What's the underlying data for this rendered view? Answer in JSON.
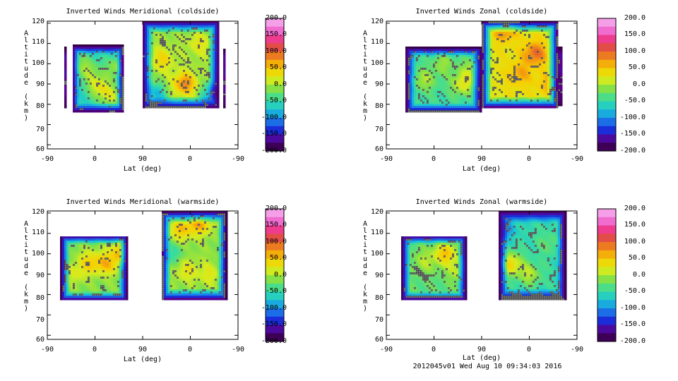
{
  "footer": {
    "stamp": "2012045v01 Wed Aug 10 09:34:03 2016"
  },
  "palette": {
    "stops": [
      "#2a0033",
      "#5a008c",
      "#1a2ad8",
      "#1c7ae8",
      "#17c3d8",
      "#38dca0",
      "#7ee04a",
      "#d6ec1e",
      "#f6d000",
      "#f39012",
      "#e0503a",
      "#ee3c92",
      "#f07ae0",
      "#f6b8ee"
    ],
    "line": "#000000"
  },
  "chart_data": [
    {
      "type": "heatmap",
      "id": "mer-cold",
      "title": "Inverted Winds Meridional (coldside)",
      "xlabel": "Lat (deg)",
      "ylabel": "Altitude (km)",
      "xticks": [
        "-90",
        "0",
        "90",
        "0",
        "-90"
      ],
      "yticks": [
        "60",
        "70",
        "80",
        "90",
        "100",
        "110",
        "120"
      ],
      "ylim": [
        58,
        121
      ],
      "colorbar": {
        "min": -200,
        "max": 200,
        "labels": [
          "200.0",
          "150.0",
          "100.0",
          "50.0",
          "0.0",
          "-50.0",
          "-100.0",
          "-150.0",
          "-200.0"
        ]
      },
      "regions": [
        {
          "x0": 0.13,
          "x1": 0.4,
          "y0": 76,
          "y1": 109,
          "base": -60,
          "blobs": [
            [
              0.27,
              89,
              1.0
            ],
            [
              0.33,
              84,
              0.9
            ],
            [
              0.22,
              96,
              0.6
            ],
            [
              0.36,
              98,
              0.7
            ],
            [
              0.18,
              101,
              0.4
            ]
          ]
        },
        {
          "x0": 0.5,
          "x1": 0.9,
          "y0": 78,
          "y1": 121,
          "base": -5,
          "blobs": [
            [
              0.72,
              90,
              1.2
            ],
            [
              0.6,
              102,
              0.6
            ],
            [
              0.8,
              110,
              0.4
            ],
            [
              0.57,
              85,
              -1.0
            ],
            [
              0.87,
              85,
              -1.3
            ]
          ]
        },
        {
          "x0": 0.085,
          "x1": 0.1,
          "y0": 78,
          "y1": 108,
          "base": -170,
          "blobs": []
        },
        {
          "x0": 0.92,
          "x1": 0.935,
          "y0": 78,
          "y1": 107,
          "base": -170,
          "blobs": []
        }
      ]
    },
    {
      "type": "heatmap",
      "id": "zon-cold",
      "title": "Inverted Winds Zonal (coldside)",
      "xlabel": "Lat (deg)",
      "ylabel": "Altitude (km)",
      "xticks": [
        "-90",
        "0",
        "90",
        "0",
        "-90"
      ],
      "yticks": [
        "60",
        "70",
        "80",
        "90",
        "100",
        "110",
        "120"
      ],
      "ylim": [
        58,
        121
      ],
      "colorbar": {
        "min": -200,
        "max": 200,
        "labels": [
          "200.0",
          "150.0",
          "100.0",
          "50.0",
          "0.0",
          "-50.0",
          "-100.0",
          "-150.0",
          "-200.0"
        ]
      },
      "regions": [
        {
          "x0": 0.1,
          "x1": 0.5,
          "y0": 76,
          "y1": 108,
          "base": -45,
          "blobs": [
            [
              0.2,
              92,
              0.6
            ],
            [
              0.4,
              90,
              0.9
            ],
            [
              0.3,
              100,
              0.5
            ],
            [
              0.45,
              97,
              0.6
            ]
          ]
        },
        {
          "x0": 0.5,
          "x1": 0.9,
          "y0": 78,
          "y1": 121,
          "base": 30,
          "blobs": [
            [
              0.62,
              117,
              0.8
            ],
            [
              0.78,
              105,
              0.9
            ],
            [
              0.7,
              95,
              0.5
            ],
            [
              0.85,
              90,
              0.4
            ]
          ]
        },
        {
          "x0": 0.9,
          "x1": 0.92,
          "y0": 79,
          "y1": 108,
          "base": -170,
          "blobs": []
        }
      ]
    },
    {
      "type": "heatmap",
      "id": "mer-warm",
      "title": "Inverted Winds Meridional (warmside)",
      "xlabel": "Lat (deg)",
      "ylabel": "Altitude (km)",
      "xticks": [
        "-90",
        "0",
        "90",
        "0",
        "-90"
      ],
      "yticks": [
        "60",
        "70",
        "80",
        "90",
        "100",
        "110",
        "120"
      ],
      "ylim": [
        58,
        121
      ],
      "colorbar": {
        "min": -200,
        "max": 200,
        "labels": [
          "200.0",
          "150.0",
          "100.0",
          "50.0",
          "0.0",
          "-50.0",
          "-100.0",
          "-150.0",
          "-200.0"
        ]
      },
      "regions": [
        {
          "x0": 0.07,
          "x1": 0.42,
          "y0": 77,
          "y1": 109,
          "base": -15,
          "blobs": [
            [
              0.22,
              96,
              0.7
            ],
            [
              0.31,
              95,
              0.9
            ],
            [
              0.4,
              101,
              1.2
            ],
            [
              0.15,
              90,
              0.4
            ]
          ]
        },
        {
          "x0": 0.6,
          "x1": 0.94,
          "y0": 77,
          "y1": 121,
          "base": -10,
          "blobs": [
            [
              0.7,
              112,
              0.8
            ],
            [
              0.8,
              115,
              1.0
            ],
            [
              0.73,
              92,
              0.5
            ],
            [
              0.85,
              90,
              0.4
            ],
            [
              0.66,
              100,
              -0.5
            ]
          ]
        }
      ]
    },
    {
      "type": "heatmap",
      "id": "zon-warm",
      "title": "Inverted Winds Zonal (warmside)",
      "xlabel": "Lat (deg)",
      "ylabel": "Altitude (km)",
      "xticks": [
        "-90",
        "0",
        "90",
        "0",
        "-90"
      ],
      "yticks": [
        "60",
        "70",
        "80",
        "90",
        "100",
        "110",
        "120"
      ],
      "ylim": [
        58,
        121
      ],
      "colorbar": {
        "min": -200,
        "max": 200,
        "labels": [
          "200.0",
          "150.0",
          "100.0",
          "50.0",
          "0.0",
          "-50.0",
          "-100.0",
          "-150.0",
          "-200.0"
        ]
      },
      "regions": [
        {
          "x0": 0.08,
          "x1": 0.42,
          "y0": 77,
          "y1": 109,
          "base": -30,
          "blobs": [
            [
              0.31,
              100,
              1.1
            ],
            [
              0.2,
              96,
              0.4
            ],
            [
              0.38,
              92,
              0.5
            ]
          ]
        },
        {
          "x0": 0.59,
          "x1": 0.94,
          "y0": 77,
          "y1": 121,
          "base": -50,
          "blobs": [
            [
              0.65,
              95,
              1.2
            ],
            [
              0.75,
              90,
              0.7
            ],
            [
              0.62,
              112,
              -0.7
            ],
            [
              0.85,
              105,
              0.3
            ]
          ]
        }
      ]
    }
  ]
}
